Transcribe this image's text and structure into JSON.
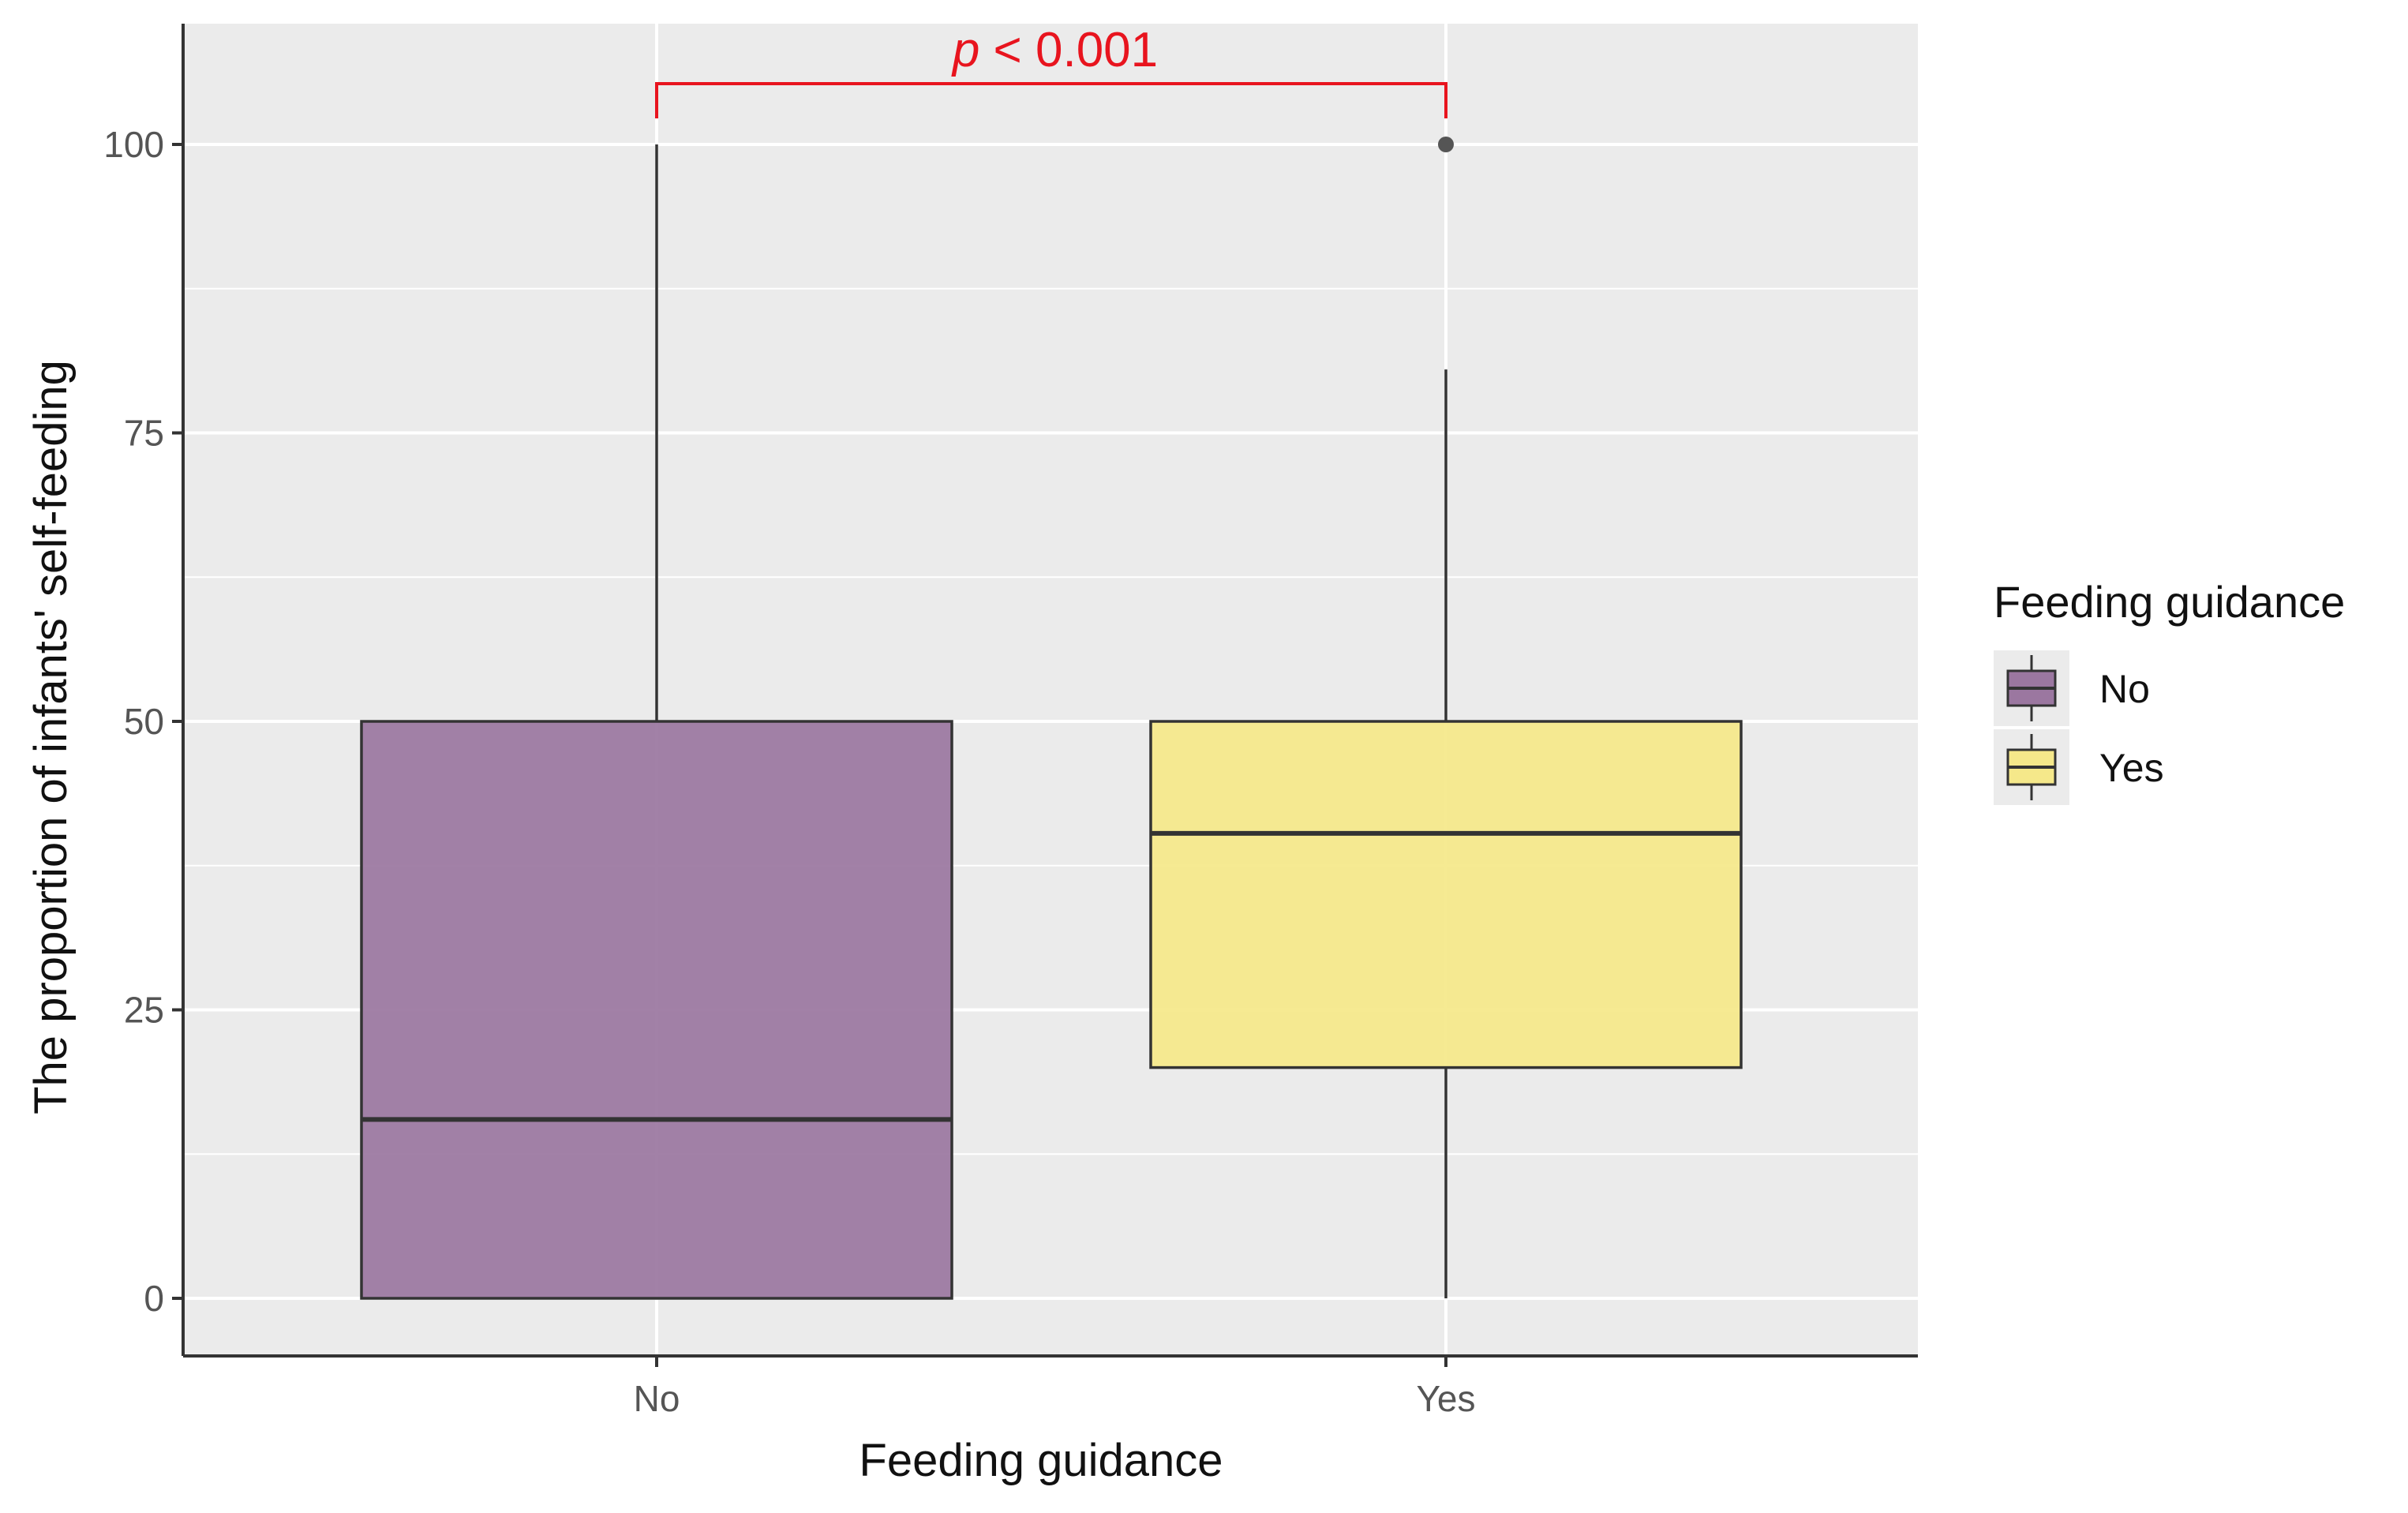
{
  "chart_data": {
    "type": "box",
    "xlabel": "Feeding guidance",
    "ylabel": "The proportion of infants' self-feeding",
    "categories": [
      "No",
      "Yes"
    ],
    "ylim": [
      -5,
      110
    ],
    "yticks": [
      0,
      25,
      50,
      75,
      100
    ],
    "grid": true,
    "boxes": [
      {
        "category": "No",
        "color": "#9b77a0",
        "whisker_low": 0,
        "q1": 0,
        "median": 15.5,
        "q3": 50,
        "whisker_high": 100,
        "outliers": []
      },
      {
        "category": "Yes",
        "color": "#f5e88a",
        "whisker_low": 0,
        "q1": 20,
        "median": 40.3,
        "q3": 50,
        "whisker_high": 80.5,
        "outliers": [
          100
        ]
      }
    ],
    "annotation": {
      "text_italic": "p",
      "text_rest": " < 0.001",
      "color": "#e8141e",
      "from": "No",
      "to": "Yes"
    },
    "legend": {
      "title": "Feeding guidance",
      "placement": "right",
      "items": [
        {
          "label": "No",
          "color": "#9b77a0"
        },
        {
          "label": "Yes",
          "color": "#f5e88a"
        }
      ]
    },
    "colors": {
      "panel": "#ebebeb",
      "grid": "#ffffff",
      "axis": "#333333",
      "tick_label": "#555555",
      "box_outline": "#333333"
    }
  }
}
